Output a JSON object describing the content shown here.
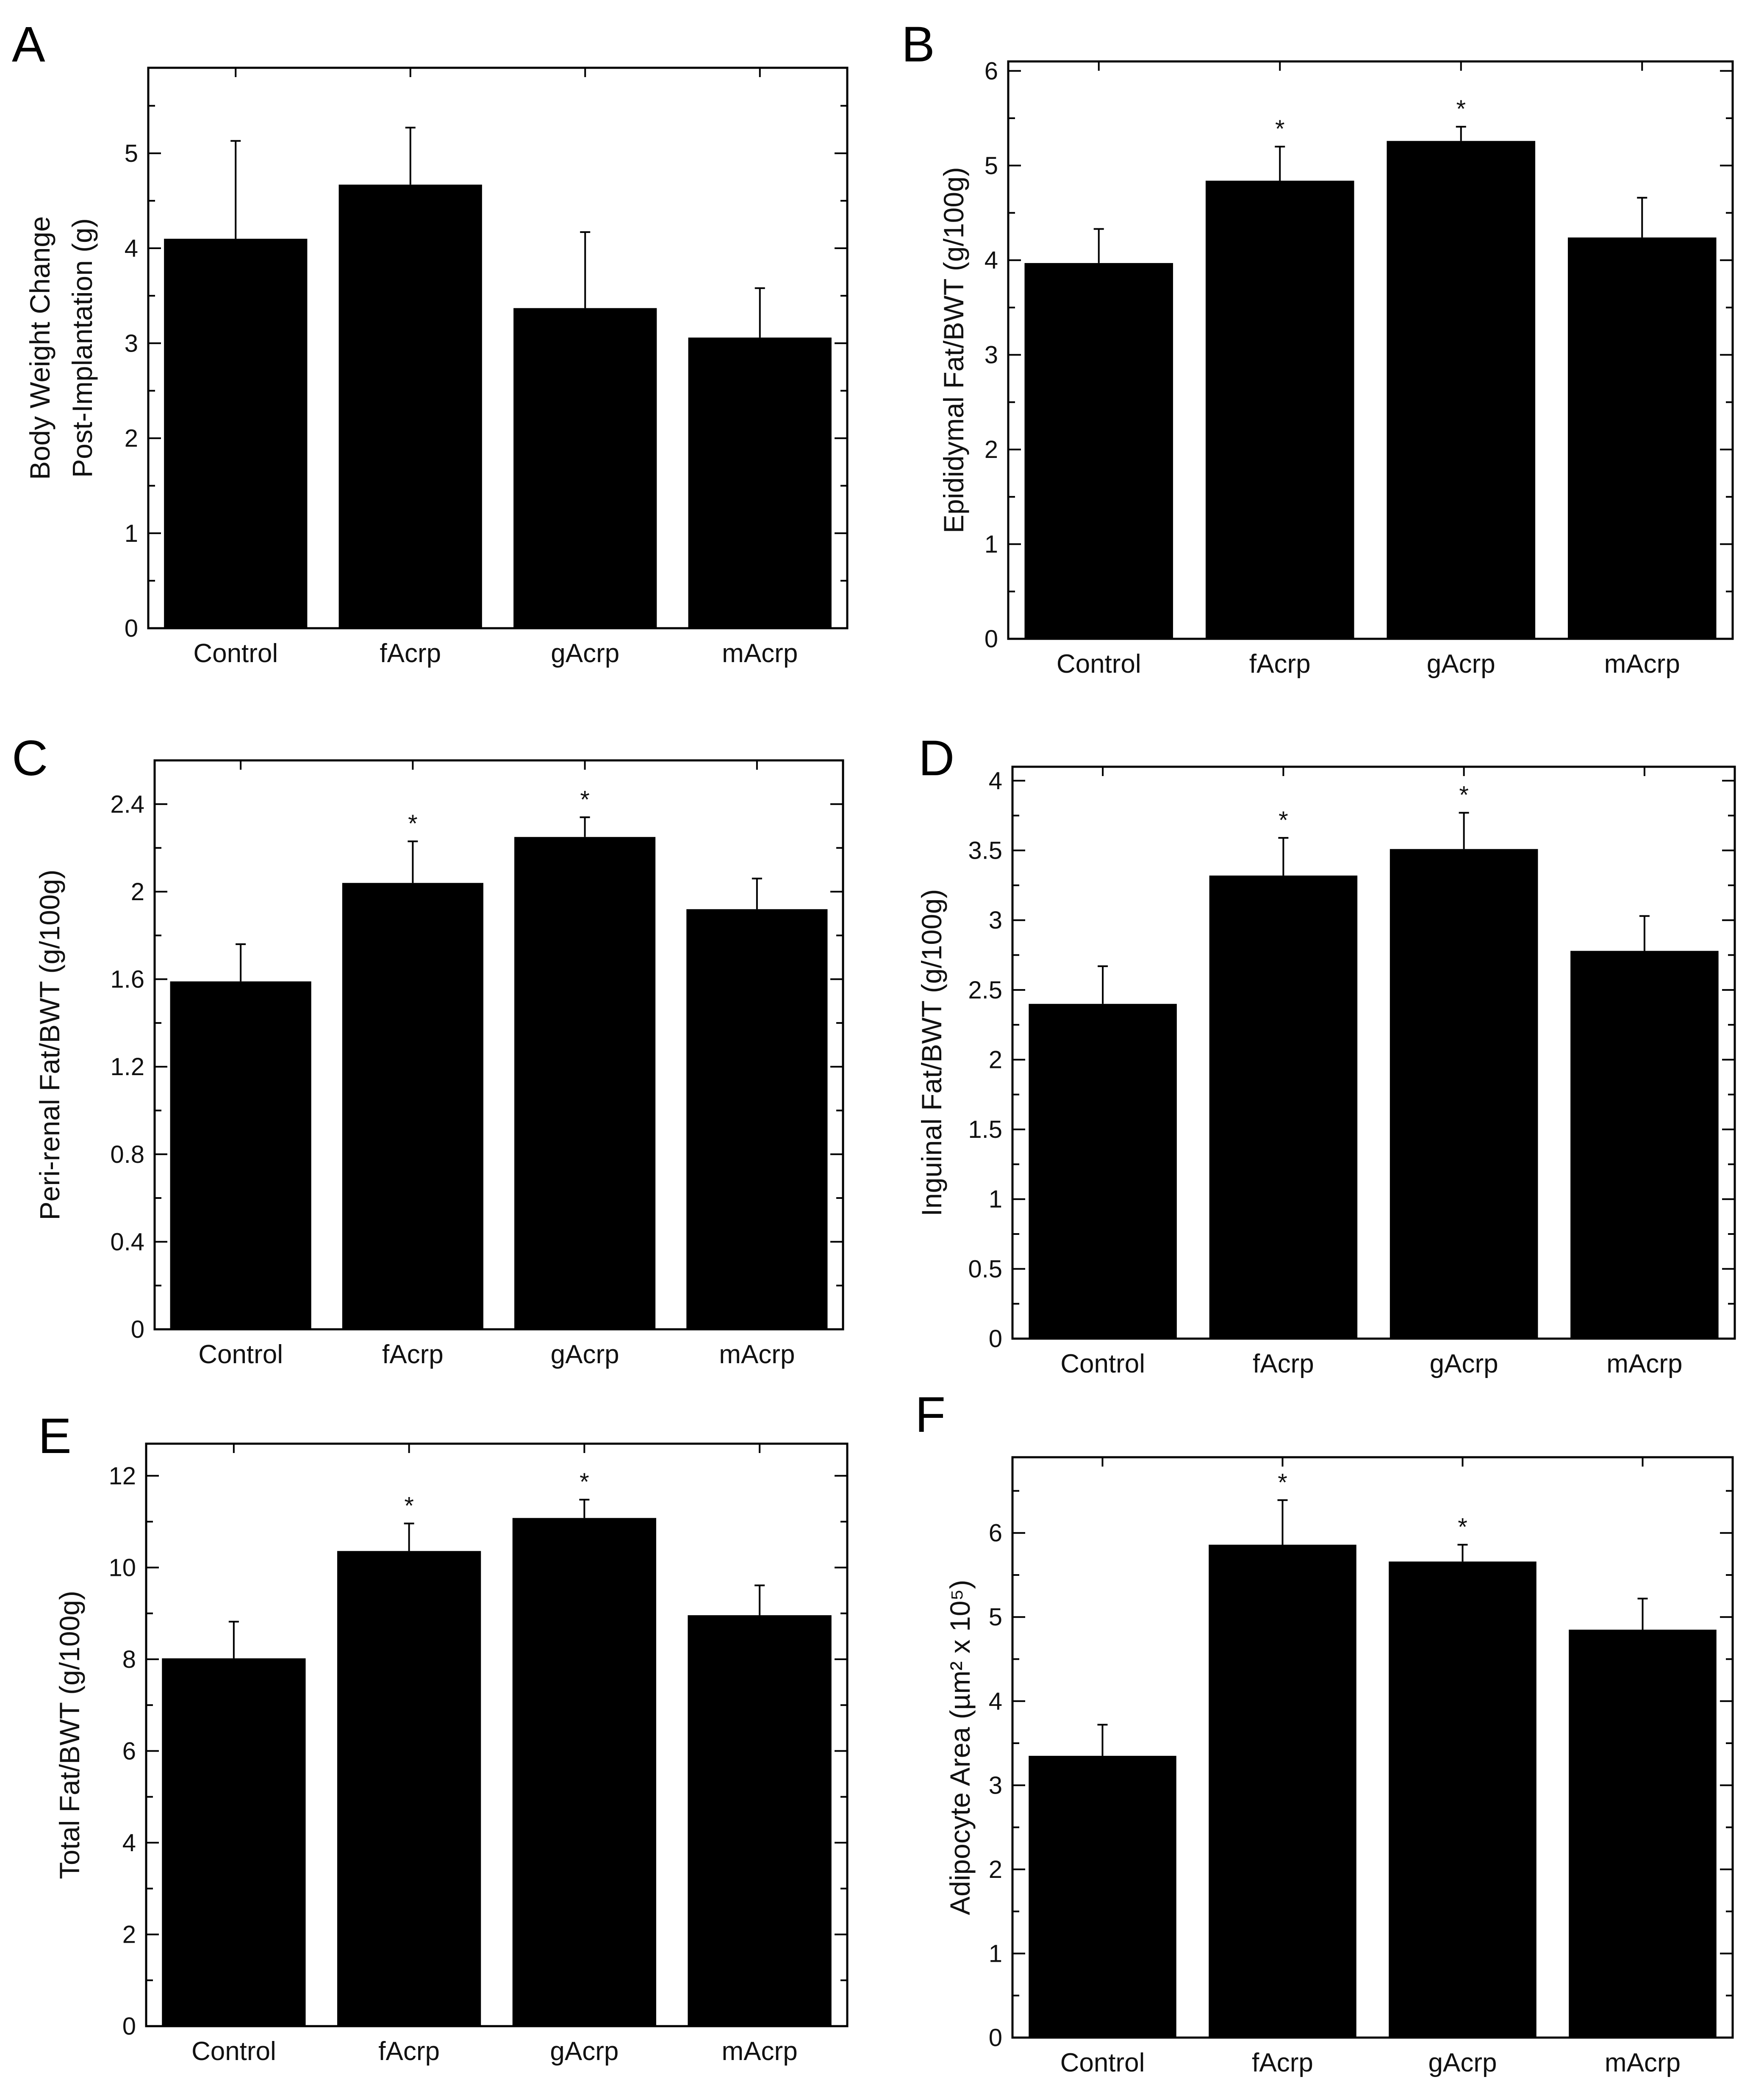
{
  "chart_data": [
    {
      "panel": "A",
      "type": "bar",
      "ylabel": [
        "Body Weight Change",
        "Post-Implantation (g)"
      ],
      "categories": [
        "Control",
        "fAcrp",
        "gAcrp",
        "mAcrp"
      ],
      "values": [
        4.1,
        4.67,
        3.37,
        3.06
      ],
      "errors": [
        1.03,
        0.6,
        0.8,
        0.52
      ],
      "significant": [
        false,
        false,
        false,
        false
      ],
      "ylim": [
        0,
        5.9
      ],
      "yticks": [
        0,
        1,
        2,
        3,
        4,
        5
      ],
      "ytick_labels": [
        "0",
        "1",
        "2",
        "3",
        "4",
        "5"
      ],
      "minor_step": 0.5,
      "star": "*"
    },
    {
      "panel": "B",
      "type": "bar",
      "ylabel": [
        "Epididymal Fat/BWT (g/100g)"
      ],
      "categories": [
        "Control",
        "fAcrp",
        "gAcrp",
        "mAcrp"
      ],
      "values": [
        3.97,
        4.84,
        5.26,
        4.24
      ],
      "errors": [
        0.36,
        0.36,
        0.15,
        0.42
      ],
      "significant": [
        false,
        true,
        true,
        false
      ],
      "ylim": [
        0,
        6.1
      ],
      "yticks": [
        0,
        1,
        2,
        3,
        4,
        5,
        6
      ],
      "ytick_labels": [
        "0",
        "1",
        "2",
        "3",
        "4",
        "5",
        "6"
      ],
      "minor_step": 0.5,
      "star": "*"
    },
    {
      "panel": "C",
      "type": "bar",
      "ylabel": [
        "Peri-renal Fat/BWT (g/100g)"
      ],
      "categories": [
        "Control",
        "fAcrp",
        "gAcrp",
        "mAcrp"
      ],
      "values": [
        1.59,
        2.04,
        2.25,
        1.92
      ],
      "errors": [
        0.17,
        0.19,
        0.09,
        0.14
      ],
      "significant": [
        false,
        true,
        true,
        false
      ],
      "ylim": [
        0,
        2.6
      ],
      "yticks": [
        0,
        0.4,
        0.8,
        1.2,
        1.6,
        2.0,
        2.4
      ],
      "ytick_labels": [
        "0",
        "0.4",
        "0.8",
        "1.2",
        "1.6",
        "2",
        "2.4"
      ],
      "minor_step": 0.2,
      "star": "*"
    },
    {
      "panel": "D",
      "type": "bar",
      "ylabel": [
        "Inguinal Fat/BWT (g/100g)"
      ],
      "categories": [
        "Control",
        "fAcrp",
        "gAcrp",
        "mAcrp"
      ],
      "values": [
        2.4,
        3.32,
        3.51,
        2.78
      ],
      "errors": [
        0.27,
        0.27,
        0.26,
        0.25
      ],
      "significant": [
        false,
        true,
        true,
        false
      ],
      "ylim": [
        0,
        4.1
      ],
      "yticks": [
        0,
        0.5,
        1,
        1.5,
        2,
        2.5,
        3,
        3.5,
        4
      ],
      "ytick_labels": [
        "0",
        "0.5",
        "1",
        "1.5",
        "2",
        "2.5",
        "3",
        "3.5",
        "4"
      ],
      "minor_step": 0.25,
      "star": "*"
    },
    {
      "panel": "E",
      "type": "bar",
      "ylabel": [
        "Total Fat/BWT (g/100g)"
      ],
      "categories": [
        "Control",
        "fAcrp",
        "gAcrp",
        "mAcrp"
      ],
      "values": [
        8.02,
        10.36,
        11.08,
        8.96
      ],
      "errors": [
        0.8,
        0.6,
        0.4,
        0.65
      ],
      "significant": [
        false,
        true,
        true,
        false
      ],
      "ylim": [
        0,
        12.7
      ],
      "yticks": [
        0,
        2,
        4,
        6,
        8,
        10,
        12
      ],
      "ytick_labels": [
        "0",
        "2",
        "4",
        "6",
        "8",
        "10",
        "12"
      ],
      "minor_step": 1,
      "star": "*"
    },
    {
      "panel": "F",
      "type": "bar",
      "ylabel": [
        "Adipocyte Area (µm² x 10⁵)"
      ],
      "categories": [
        "Control",
        "fAcrp",
        "gAcrp",
        "mAcrp"
      ],
      "values": [
        3.35,
        5.86,
        5.66,
        4.85
      ],
      "errors": [
        0.37,
        0.53,
        0.2,
        0.37
      ],
      "significant": [
        false,
        true,
        true,
        false
      ],
      "ylim": [
        0,
        6.9
      ],
      "yticks": [
        0,
        1,
        2,
        3,
        4,
        5,
        6
      ],
      "ytick_labels": [
        "0",
        "1",
        "2",
        "3",
        "4",
        "5",
        "6"
      ],
      "minor_step": 0.5,
      "star": "*"
    }
  ]
}
